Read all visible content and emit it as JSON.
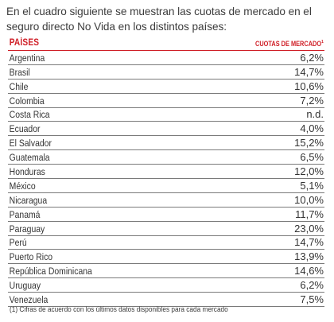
{
  "intro_text": "En el cuadro siguiente se muestran las cuotas de mercado en el seguro directo No Vida en los distintos países:",
  "table": {
    "header_country": "PAÍSES",
    "header_share": "CUOTAS DE MERCADO",
    "header_share_note": "1",
    "rows": [
      {
        "country": "Argentina",
        "share": "6,2%"
      },
      {
        "country": "Brasil",
        "share": "14,7%"
      },
      {
        "country": "Chile",
        "share": "10,6%"
      },
      {
        "country": "Colombia",
        "share": "7,2%"
      },
      {
        "country": "Costa Rica",
        "share": "n.d."
      },
      {
        "country": "Ecuador",
        "share": "4,0%"
      },
      {
        "country": "El Salvador",
        "share": "15,2%"
      },
      {
        "country": "Guatemala",
        "share": "6,5%"
      },
      {
        "country": "Honduras",
        "share": "12,0%"
      },
      {
        "country": "México",
        "share": "5,1%"
      },
      {
        "country": "Nicaragua",
        "share": "10,0%"
      },
      {
        "country": "Panamá",
        "share": "11,7%"
      },
      {
        "country": "Paraguay",
        "share": "23,0%"
      },
      {
        "country": "Perú",
        "share": "14,7%"
      },
      {
        "country": "Puerto Rico",
        "share": "13,9%"
      },
      {
        "country": "República Dominicana",
        "share": "14,6%"
      },
      {
        "country": "Uruguay",
        "share": "6,2%"
      },
      {
        "country": "Venezuela",
        "share": "7,5%"
      }
    ]
  },
  "footnote": "(1) Cifras de acuerdo con los últimos datos disponibles para cada mercado",
  "colors": {
    "accent": "#cf1f27",
    "text": "#333333",
    "rule": "#7a7a7a"
  }
}
